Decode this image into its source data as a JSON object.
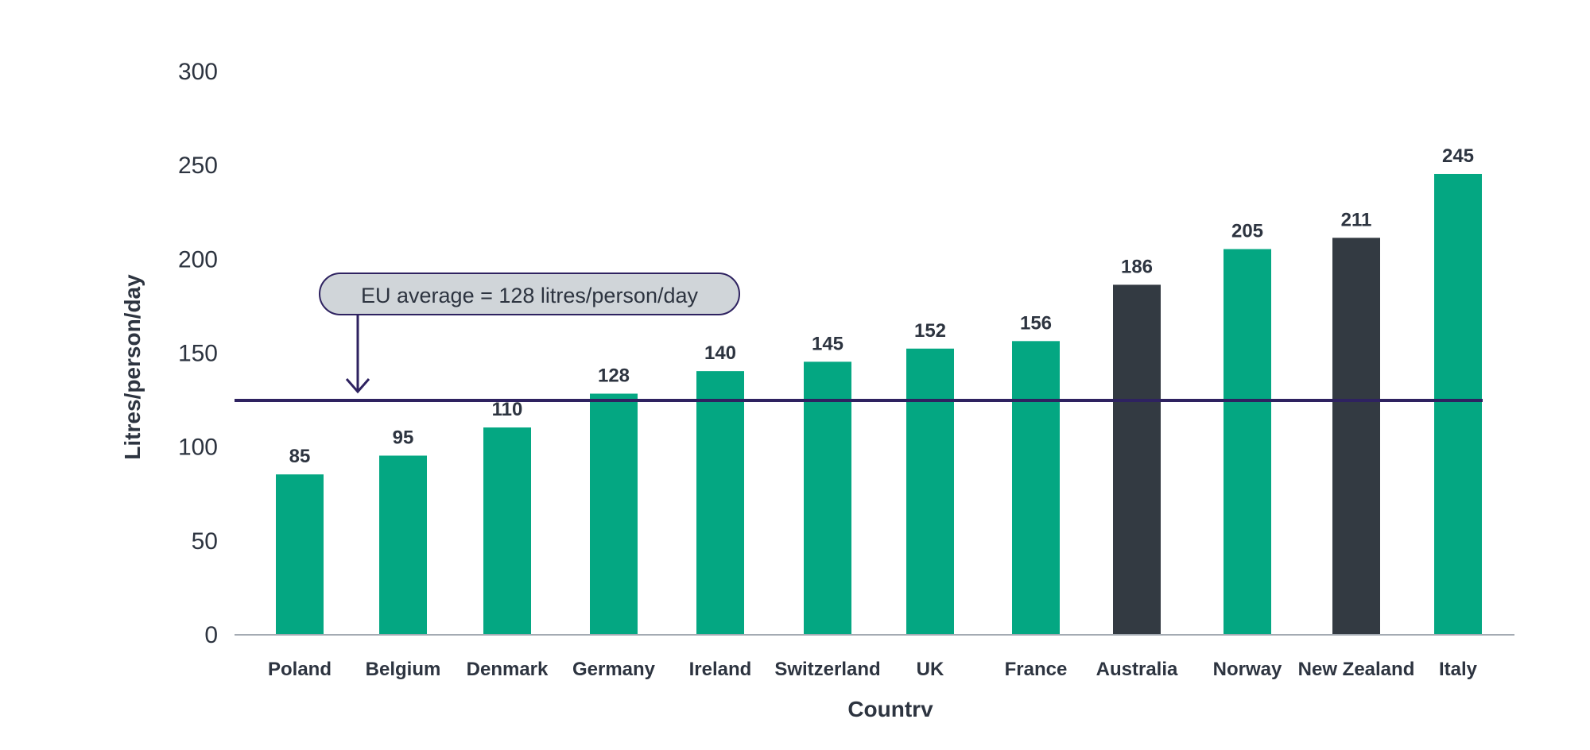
{
  "chart_data": {
    "type": "bar",
    "categories": [
      "Poland",
      "Belgium",
      "Denmark",
      "Germany",
      "Ireland",
      "Switzerland",
      "UK",
      "France",
      "Australia",
      "Norway",
      "New Zealand",
      "Italy"
    ],
    "values": [
      85,
      95,
      110,
      128,
      140,
      145,
      152,
      156,
      186,
      205,
      211,
      245
    ],
    "data_labels": [
      "85",
      "95",
      "110",
      "128",
      "140",
      "145",
      "152",
      "156",
      "186",
      "205",
      "211",
      "245"
    ],
    "highlighted": [
      "Australia",
      "New Zealand"
    ],
    "xlabel": "Countrv",
    "ylabel": "Litres/person/day",
    "ylim": [
      0,
      300
    ],
    "yticks": [
      0,
      50,
      100,
      150,
      200,
      250,
      300
    ],
    "ytick_labels": [
      "0",
      "50",
      "100",
      "150",
      "200",
      "250",
      "300"
    ],
    "grid": false,
    "colors": {
      "default_bar": "#04a782",
      "highlight_bar": "#333a42",
      "reference_line": "#2e2260",
      "callout_fill": "#d0d5d9",
      "axis": "#a4abb3",
      "text": "#2d3440"
    },
    "reference_line": {
      "value": 128,
      "label": "EU average = 128 litres/person/day"
    }
  }
}
